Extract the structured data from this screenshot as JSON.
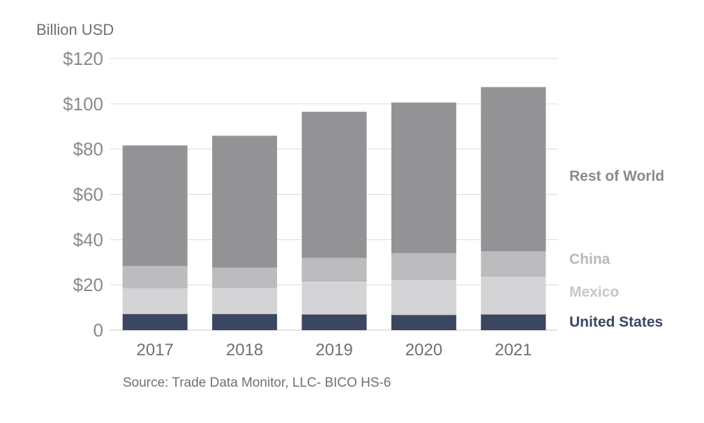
{
  "chart_data": {
    "type": "bar",
    "stacked": true,
    "ylabel": "Billion USD",
    "categories": [
      "2017",
      "2018",
      "2019",
      "2020",
      "2021"
    ],
    "ylim": [
      0,
      120
    ],
    "yticks": [
      {
        "value": 0,
        "label": "0"
      },
      {
        "value": 20,
        "label": "$20"
      },
      {
        "value": 40,
        "label": "$40"
      },
      {
        "value": 60,
        "label": "$60"
      },
      {
        "value": 80,
        "label": "$80"
      },
      {
        "value": 100,
        "label": "$100"
      },
      {
        "value": 120,
        "label": "$120"
      }
    ],
    "grid": true,
    "series": [
      {
        "name": "United States",
        "color": "#3b4660",
        "values": [
          7.2,
          7.2,
          7.0,
          6.8,
          7.0
        ]
      },
      {
        "name": "Mexico",
        "color": "#d4d4d6",
        "values": [
          11.6,
          11.8,
          14.8,
          15.7,
          17.0
        ]
      },
      {
        "name": "China",
        "color": "#bcbcbe",
        "values": [
          9.7,
          8.8,
          10.3,
          11.7,
          11.0
        ]
      },
      {
        "name": "Rest of World",
        "color": "#939396",
        "values": [
          53.0,
          58.0,
          64.3,
          66.3,
          72.3
        ]
      }
    ],
    "source": "Source: Trade Data Monitor, LLC- BICO HS-6"
  }
}
